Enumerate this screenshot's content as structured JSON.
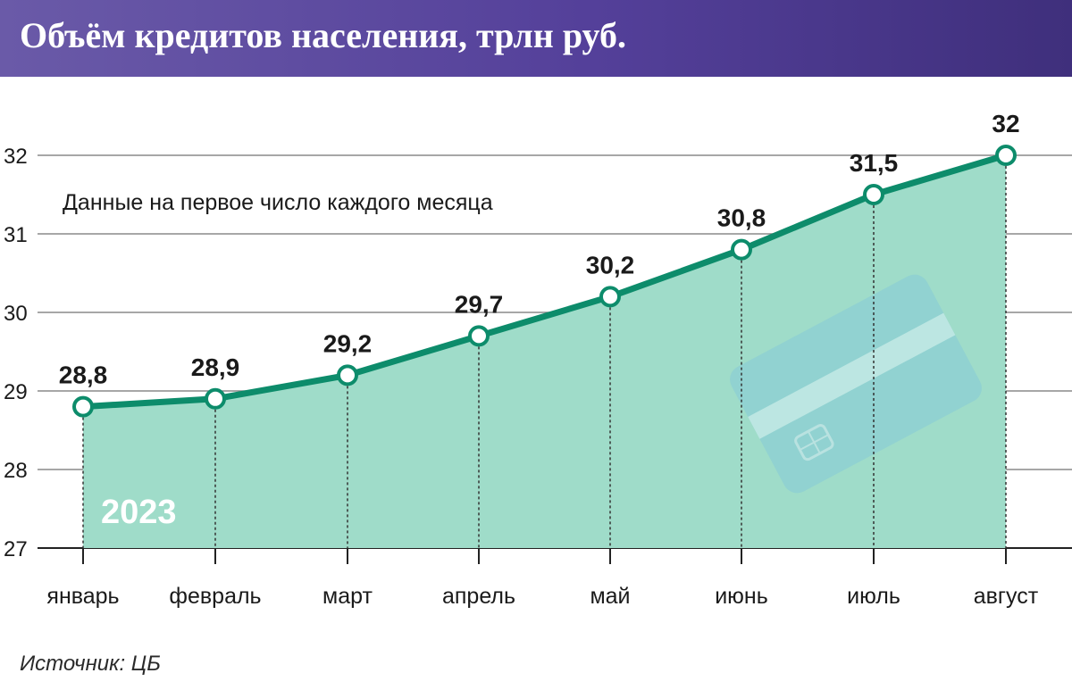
{
  "header": {
    "title": "Объём кредитов населения, трлн руб."
  },
  "chart_data": {
    "type": "area",
    "title": "Объём кредитов населения, трлн руб.",
    "subtitle": "Данные на первое число каждого месяца",
    "year_label": "2023",
    "categories": [
      "январь",
      "февраль",
      "март",
      "апрель",
      "май",
      "июнь",
      "июль",
      "август"
    ],
    "values": [
      28.8,
      28.9,
      29.2,
      29.7,
      30.2,
      30.8,
      31.5,
      32
    ],
    "value_labels": [
      "28,8",
      "28,9",
      "29,2",
      "29,7",
      "30,2",
      "30,8",
      "31,5",
      "32"
    ],
    "yticks": [
      27,
      28,
      29,
      30,
      31,
      32
    ],
    "ylim": [
      27,
      32
    ],
    "grid": true,
    "colors": {
      "line": "#0d8c6b",
      "fill": "#9fdcc9",
      "grid": "#8a8a8a",
      "marker_fill": "#ffffff",
      "card": "#8ccfd3"
    }
  },
  "source": "Источник: ЦБ"
}
